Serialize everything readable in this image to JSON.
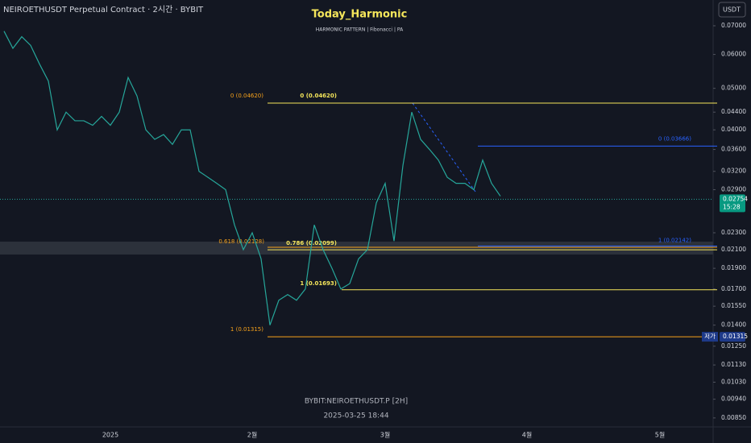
{
  "header": {
    "symbol": "NEIROETHUSDT Perpetual Contract · 2시간 · BYBIT",
    "currency_button": "USDT"
  },
  "watermark": {
    "symbol": "BYBIT:NEIROETHUSDT.P  [2H]",
    "timestamp": "2025-03-25  18:44"
  },
  "chart_data": {
    "type": "line",
    "title": "Today_Harmonic",
    "subtitle": "HARMONIC PATTERN | Fibonacci | PA",
    "categories": [
      null,
      null,
      null,
      null,
      null,
      null,
      null,
      null,
      null,
      null,
      null,
      null,
      "2025",
      null,
      null,
      null,
      null,
      null,
      null,
      null,
      null,
      null,
      null,
      null,
      null,
      null,
      null,
      null,
      "2월",
      null,
      null,
      null,
      null,
      null,
      null,
      null,
      null,
      null,
      null,
      null,
      null,
      null,
      null,
      "3월",
      null,
      null,
      null,
      null,
      null,
      null,
      null,
      null,
      null,
      null,
      null,
      null,
      null,
      null,
      null,
      "4월",
      null,
      null,
      null,
      null,
      null,
      null,
      null,
      null,
      null,
      null,
      null,
      null,
      null,
      null,
      "5월",
      null,
      null,
      null,
      null,
      null,
      null
    ],
    "series": [
      {
        "name": "NEIROETHUSDT",
        "color": "#26a69a",
        "values": [
          0.068,
          0.062,
          0.066,
          0.063,
          0.057,
          0.052,
          0.04,
          0.044,
          0.042,
          0.042,
          0.041,
          0.043,
          0.041,
          0.044,
          0.053,
          0.048,
          0.04,
          0.038,
          0.039,
          0.037,
          0.04,
          0.04,
          0.032,
          0.031,
          0.03,
          0.029,
          0.024,
          0.021,
          0.023,
          0.02,
          0.014,
          0.016,
          0.0165,
          0.016,
          0.017,
          0.024,
          0.021,
          0.019,
          0.017,
          0.0175,
          0.02,
          0.021,
          0.027,
          0.03,
          0.022,
          0.033,
          0.044,
          0.038,
          0.036,
          0.034,
          0.031,
          0.03,
          0.03,
          0.029,
          0.034,
          0.03,
          0.028,
          null,
          null,
          null,
          null,
          null,
          null,
          null,
          null,
          null,
          null,
          null,
          null,
          null,
          null,
          null,
          null,
          null,
          null,
          null,
          null,
          null,
          null,
          null,
          null
        ]
      }
    ],
    "log_scale": true,
    "ylim": [
      0.0804,
      0.0081
    ],
    "yticks": [
      {
        "value": 0.07,
        "label": "0.07000"
      },
      {
        "value": 0.06,
        "label": "0.06000"
      },
      {
        "value": 0.05,
        "label": "0.05000"
      },
      {
        "value": 0.044,
        "label": "0.04400"
      },
      {
        "value": 0.04,
        "label": "0.04000"
      },
      {
        "value": 0.036,
        "label": "0.03600"
      },
      {
        "value": 0.032,
        "label": "0.03200"
      },
      {
        "value": 0.029,
        "label": "0.02900"
      },
      {
        "value": 0.023,
        "label": "0.02300"
      },
      {
        "value": 0.021,
        "label": "0.02100"
      },
      {
        "value": 0.019,
        "label": "0.01900"
      },
      {
        "value": 0.017,
        "label": "0.01700"
      },
      {
        "value": 0.0155,
        "label": "0.01550"
      },
      {
        "value": 0.014,
        "label": "0.01400"
      },
      {
        "value": 0.0125,
        "label": "0.01250"
      },
      {
        "value": 0.0113,
        "label": "0.01130"
      },
      {
        "value": 0.0103,
        "label": "0.01030"
      },
      {
        "value": 0.0094,
        "label": "0.00940"
      },
      {
        "value": 0.0085,
        "label": "0.00850"
      }
    ],
    "last_price": 0.02754,
    "countdown": "15:28",
    "low_label": "저가",
    "low_price": 0.01315,
    "annotations": [
      {
        "label": "0 (0.04620)",
        "value": 0.0462,
        "color": "#f7a21b"
      },
      {
        "label": "0 (0.04620)",
        "value": 0.0462,
        "color": "#f5e65b"
      },
      {
        "label": "0.618 (0.02128)",
        "value": 0.02128,
        "color": "#f7a21b"
      },
      {
        "label": "0.786 (0.02099)",
        "value": 0.02099,
        "color": "#f5e65b"
      },
      {
        "label": "1 (0.01693)",
        "value": 0.01693,
        "color": "#f5e65b"
      },
      {
        "label": "1 (0.01315)",
        "value": 0.01315,
        "color": "#f7a21b"
      },
      {
        "label": "0 (0.03666)",
        "value": 0.03666,
        "color": "#2962ff"
      },
      {
        "label": "1 (0.02142)",
        "value": 0.02142,
        "color": "#2962ff"
      }
    ]
  }
}
